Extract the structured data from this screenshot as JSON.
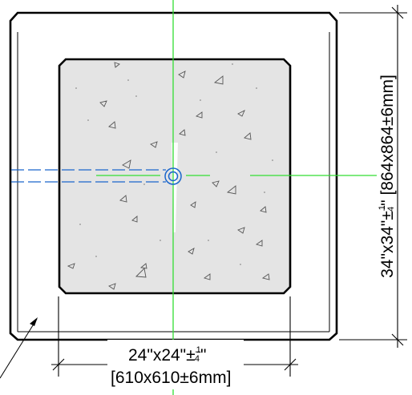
{
  "drawing": {
    "dim_width_inches": "24\"x24\"±",
    "dim_width_mm": "[610x610±6mm]",
    "dim_height_inches": "34\"x34\"±",
    "dim_height_mm": "[864x864±6mm]",
    "tolerance_numerator": "1",
    "tolerance_denominator": "4"
  },
  "colors": {
    "outline": "#000000",
    "concrete_fill": "#e4e4e4",
    "centerline": "#33dd33",
    "pipe": "#1a66cc",
    "aggregate": "#555555"
  }
}
